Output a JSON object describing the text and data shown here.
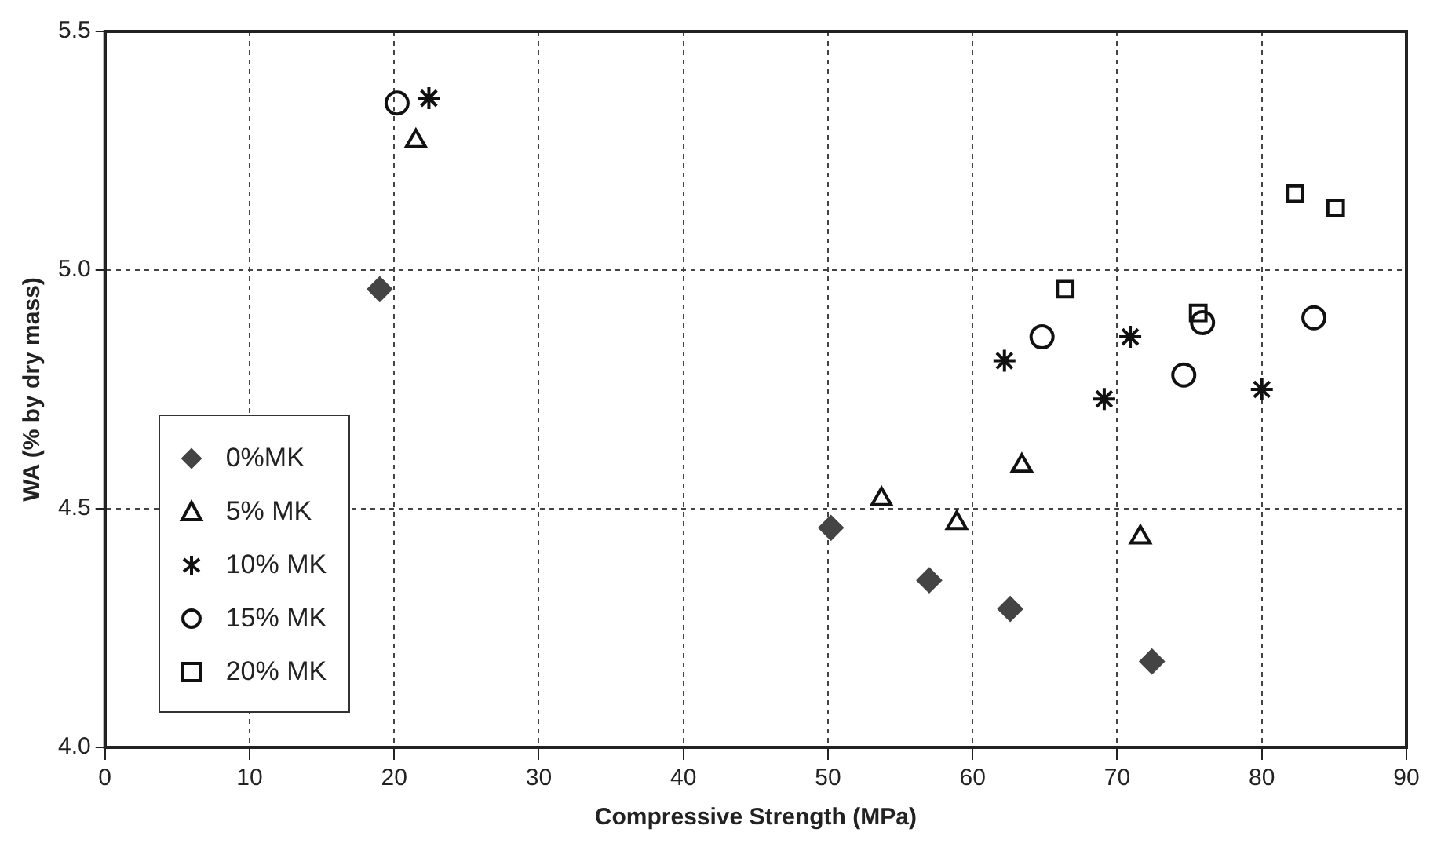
{
  "chart_data": {
    "type": "scatter",
    "xlabel": "Compressive Strength (MPa)",
    "ylabel": "WA (% by dry mass)",
    "xlim": [
      0,
      90
    ],
    "xticks": [
      0,
      10,
      20,
      30,
      40,
      50,
      60,
      70,
      80,
      90
    ],
    "ylim": [
      4.0,
      5.5
    ],
    "yticks": [
      {
        "value": 4.0,
        "label": "4.0"
      },
      {
        "value": 4.5,
        "label": "4.5"
      },
      {
        "value": 5.0,
        "label": "5.0"
      },
      {
        "value": 5.5,
        "label": "5.5"
      }
    ],
    "grid": true,
    "legend": "bottom left",
    "series": [
      {
        "name": "0%MK",
        "color": "#444444",
        "marker": "diamond",
        "x": [
          19.0,
          50.2,
          57.0,
          62.6,
          72.4
        ],
        "values": [
          4.96,
          4.46,
          4.35,
          4.29,
          4.18
        ]
      },
      {
        "name": "5% MK",
        "color": "#111111",
        "marker": "triangle",
        "x": [
          21.5,
          53.7,
          58.9,
          63.4,
          71.6
        ],
        "values": [
          5.27,
          4.52,
          4.47,
          4.59,
          4.44
        ]
      },
      {
        "name": "10% MK",
        "color": "#111111",
        "marker": "cross",
        "x": [
          22.4,
          62.2,
          69.1,
          70.9,
          80.0
        ],
        "values": [
          5.36,
          4.81,
          4.73,
          4.86,
          4.75
        ]
      },
      {
        "name": "15% MK",
        "color": "#111111",
        "marker": "circle",
        "x": [
          20.2,
          64.8,
          74.6,
          75.9,
          83.6
        ],
        "values": [
          5.35,
          4.86,
          4.78,
          4.89,
          4.9
        ]
      },
      {
        "name": "20% MK",
        "color": "#111111",
        "marker": "square",
        "x": [
          66.4,
          75.6,
          82.3,
          85.1
        ],
        "values": [
          4.96,
          4.91,
          5.16,
          5.13
        ]
      }
    ]
  }
}
